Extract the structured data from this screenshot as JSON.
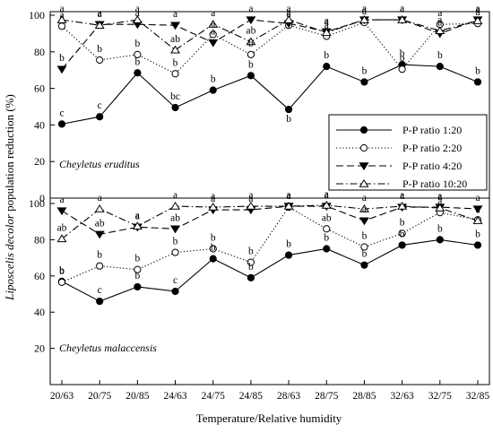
{
  "chart_data": {
    "type": "line",
    "xlabel": "Temperature/Relative humidity",
    "ylabel_parts": [
      "Liposcelis decolor",
      " population reduction (%)"
    ],
    "categories": [
      "20/63",
      "20/75",
      "20/85",
      "24/63",
      "24/75",
      "24/85",
      "28/63",
      "28/75",
      "28/85",
      "32/63",
      "32/75",
      "32/85"
    ],
    "ylim": [
      0,
      100
    ],
    "yticks": [
      0,
      20,
      40,
      60,
      80,
      100
    ],
    "grid": false,
    "legend_position": "right, inside top panel",
    "legend": [
      {
        "label": "P-P ratio 1:20",
        "series": 0
      },
      {
        "label": "P-P ratio 2:20",
        "series": 1
      },
      {
        "label": "P-P ratio 4:20",
        "series": 2
      },
      {
        "label": "P-P ratio 10:20",
        "series": 3
      }
    ],
    "panels": [
      {
        "species": "Cheyletus eruditus",
        "series": [
          {
            "name": "P-P ratio 1:20",
            "marker": "filled-circle",
            "dash": "solid",
            "values": [
              40.5,
              44.5,
              68.5,
              49.5,
              59,
              67,
              48.5,
              72,
              63.5,
              73,
              72,
              63.5
            ],
            "letters": [
              "c",
              "c",
              "b",
              "bc",
              "b",
              "b",
              "b",
              "b",
              "b",
              "b",
              "b",
              "b"
            ]
          },
          {
            "name": "P-P ratio 2:20",
            "marker": "open-circle",
            "dash": "dotted",
            "values": [
              94,
              75.5,
              78.5,
              68,
              89.5,
              78.5,
              94.5,
              88.5,
              96,
              70.5,
              95,
              95.5
            ],
            "letters": [
              "a",
              "b",
              "b",
              "b",
              "a",
              "b",
              "a",
              "a",
              "a",
              "b",
              "a",
              "a"
            ]
          },
          {
            "name": "P-P ratio 4:20",
            "marker": "filled-triangle-down",
            "dash": "dashed",
            "values": [
              70.5,
              95,
              95,
              94.5,
              85,
              97.5,
              95.5,
              91,
              97.5,
              97.5,
              90,
              97.5
            ],
            "letters": [
              "b",
              "a",
              "a",
              "a",
              "a",
              "a",
              "a",
              "a",
              "a",
              "a",
              "a",
              "a"
            ]
          },
          {
            "name": "P-P ratio 10:20",
            "marker": "open-triangle-up",
            "dash": "dashdot",
            "values": [
              97.5,
              94.5,
              97.5,
              81,
              95,
              85.5,
              97.5,
              90.5,
              97.5,
              97.5,
              91.5,
              97
            ]
          }
        ],
        "letters_extra": {
          "s3": [
            "a",
            "a",
            "a",
            "ab",
            "a",
            "ab",
            "a",
            "a",
            "a",
            "a",
            "a",
            "a"
          ]
        }
      },
      {
        "species": "Cheyletus malaccensis",
        "series": [
          {
            "name": "P-P ratio 1:20",
            "marker": "filled-circle",
            "dash": "solid",
            "values": [
              57,
              46,
              54,
              51.5,
              69.5,
              59,
              71.5,
              75,
              66,
              77,
              80,
              77
            ],
            "letters": [
              "b",
              "c",
              "b",
              "c",
              "b",
              "b",
              "b",
              "b",
              "b",
              "b",
              "b",
              "b"
            ]
          },
          {
            "name": "P-P ratio 2:20",
            "marker": "open-circle",
            "dash": "dotted",
            "values": [
              56.5,
              65.5,
              63.5,
              73,
              75,
              67.5,
              98,
              86,
              76,
              83.5,
              95,
              91
            ],
            "letters": [
              "b",
              "b",
              "b",
              "b",
              "b",
              "b",
              "a",
              "ab",
              "b",
              "b",
              "a",
              "a"
            ]
          },
          {
            "name": "P-P ratio 4:20",
            "marker": "filled-triangle-down",
            "dash": "dashed",
            "values": [
              96,
              83,
              87,
              86,
              96.5,
              96.5,
              98.5,
              98.5,
              90.5,
              98,
              98,
              97
            ],
            "letters": [
              "a",
              "ab",
              "a",
              "ab",
              "a",
              "a",
              "a",
              "a",
              "a",
              "a",
              "a",
              "a"
            ]
          },
          {
            "name": "P-P ratio 10:20",
            "marker": "open-triangle-up",
            "dash": "dashdot",
            "values": [
              80.5,
              97,
              87.5,
              98.5,
              98,
              98.5,
              98.5,
              99,
              97,
              98.5,
              97.5,
              90.5
            ],
            "letters": [
              "ab",
              "a",
              "a",
              "a",
              "a",
              "a",
              "a",
              "a",
              "a",
              "a",
              "a",
              "a"
            ]
          }
        ]
      }
    ]
  }
}
